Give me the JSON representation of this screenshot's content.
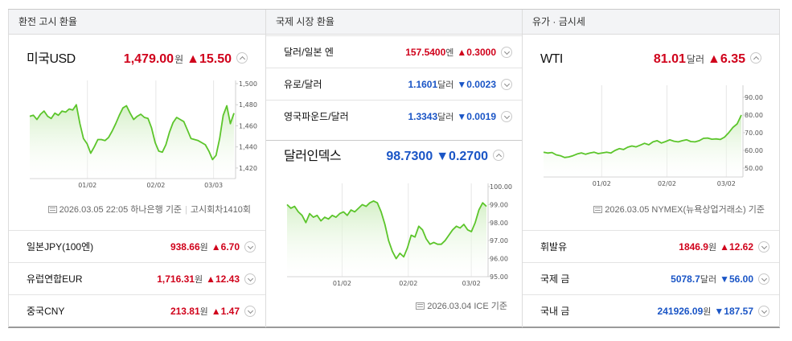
{
  "colors": {
    "up": "#d0021b",
    "down": "#1a55c6",
    "line": "#5cc52b"
  },
  "exchange": {
    "header": "환전 고시 환율",
    "main": {
      "name": "미국USD",
      "value": "1,479.00",
      "unit": "원",
      "change": "▲15.50",
      "direction": "up"
    },
    "footer": {
      "date": "2026.03.05 22:05",
      "source": "하나은행 기준",
      "notice": "고시회차1410회"
    },
    "rows": [
      {
        "name": "일본JPY(100엔)",
        "value": "938.66",
        "unit": "원",
        "change": "▲6.70",
        "direction": "up"
      },
      {
        "name": "유럽연합EUR",
        "value": "1,716.31",
        "unit": "원",
        "change": "▲12.43",
        "direction": "up"
      },
      {
        "name": "중국CNY",
        "value": "213.81",
        "unit": "원",
        "change": "▲1.47",
        "direction": "up"
      }
    ]
  },
  "intl": {
    "header": "국제 시장 환율",
    "rows": [
      {
        "name": "달러/일본 엔",
        "value": "157.5400",
        "unit": "엔",
        "change": "▲0.3000",
        "direction": "up"
      },
      {
        "name": "유로/달러",
        "value": "1.1601",
        "unit": "달러",
        "change": "▼0.0023",
        "direction": "down"
      },
      {
        "name": "영국파운드/달러",
        "value": "1.3343",
        "unit": "달러",
        "change": "▼0.0019",
        "direction": "down"
      }
    ],
    "main": {
      "name": "달러인덱스",
      "value": "98.7300",
      "unit": "",
      "change": "▼0.2700",
      "direction": "down"
    },
    "footer": {
      "date": "2026.03.04",
      "source": "ICE 기준"
    }
  },
  "commodity": {
    "header": "유가 · 금시세",
    "main": {
      "name": "WTI",
      "value": "81.01",
      "unit": "달러",
      "change": "▲6.35",
      "direction": "up"
    },
    "footer": {
      "date": "2026.03.05",
      "source": "NYMEX(뉴욕상업거래소) 기준"
    },
    "rows": [
      {
        "name": "휘발유",
        "value": "1846.9",
        "unit": "원",
        "change": "▲12.62",
        "direction": "up"
      },
      {
        "name": "국제 금",
        "value": "5078.7",
        "unit": "달러",
        "change": "▼56.00",
        "direction": "down"
      },
      {
        "name": "국내 금",
        "value": "241926.09",
        "unit": "원",
        "change": "▼187.57",
        "direction": "down"
      }
    ]
  },
  "chart_data": [
    {
      "type": "area",
      "ylim": [
        1410,
        1500
      ],
      "yticks": [
        "1,420",
        "1,440",
        "1,460",
        "1,480",
        "1,500"
      ],
      "ytick_values": [
        1420,
        1440,
        1460,
        1480,
        1500
      ],
      "xticks": [
        "01/02",
        "02/02",
        "03/03"
      ],
      "xtick_positions": [
        0.2824,
        0.6176,
        0.9
      ],
      "values": [
        1469,
        1470,
        1466,
        1471,
        1474,
        1469,
        1467,
        1472,
        1470,
        1474,
        1473,
        1476,
        1475,
        1480,
        1462,
        1448,
        1443,
        1434,
        1440,
        1447,
        1447,
        1446,
        1449,
        1455,
        1462,
        1470,
        1477,
        1479,
        1472,
        1466,
        1469,
        1471,
        1468,
        1467,
        1458,
        1444,
        1436,
        1435,
        1442,
        1454,
        1463,
        1468,
        1466,
        1464,
        1456,
        1448,
        1447,
        1446,
        1444,
        1442,
        1436,
        1428,
        1432,
        1448,
        1470,
        1479,
        1462,
        1472
      ]
    },
    {
      "type": "area",
      "ylim": [
        95,
        100
      ],
      "yticks": [
        "95.00",
        "96.00",
        "97.00",
        "98.00",
        "99.00",
        "100.00"
      ],
      "ytick_values": [
        95,
        96,
        97,
        98,
        99,
        100
      ],
      "xticks": [
        "01/02",
        "02/02",
        "03/02"
      ],
      "xtick_positions": [
        0.276,
        0.608,
        0.924
      ],
      "values": [
        99.0,
        98.8,
        98.9,
        98.6,
        98.4,
        98.0,
        98.5,
        98.3,
        98.4,
        98.1,
        98.3,
        98.2,
        98.4,
        98.3,
        98.5,
        98.6,
        98.4,
        98.7,
        98.6,
        98.8,
        99.0,
        98.9,
        99.1,
        99.2,
        99.1,
        98.6,
        97.9,
        97.0,
        96.4,
        96.0,
        96.3,
        96.1,
        96.6,
        97.3,
        97.2,
        97.8,
        97.6,
        97.1,
        96.8,
        96.9,
        96.8,
        96.8,
        97.0,
        97.3,
        97.6,
        97.8,
        97.7,
        97.9,
        97.6,
        97.5,
        98.0,
        98.7,
        99.1,
        98.9
      ]
    },
    {
      "type": "area",
      "ylim": [
        45,
        95
      ],
      "yticks": [
        "50.00",
        "60.00",
        "70.00",
        "80.00",
        "90.00"
      ],
      "ytick_values": [
        50,
        60,
        70,
        80,
        90
      ],
      "xticks": [
        "01/02",
        "02/02",
        "03/02"
      ],
      "xtick_positions": [
        0.294,
        0.624,
        0.924
      ],
      "values": [
        59,
        58.5,
        58.8,
        57.5,
        57,
        56,
        56.3,
        57,
        58,
        58.6,
        57.8,
        58.5,
        59,
        58.2,
        58.6,
        59,
        58.5,
        60,
        61,
        60.5,
        61.8,
        62.5,
        62,
        63,
        64,
        63.2,
        64.8,
        65.5,
        64.2,
        65,
        66,
        65.2,
        64.8,
        65.5,
        66,
        65,
        64.8,
        65.5,
        66.8,
        67,
        66.3,
        66.5,
        66.2,
        67.5,
        70,
        73,
        75,
        80
      ]
    }
  ]
}
